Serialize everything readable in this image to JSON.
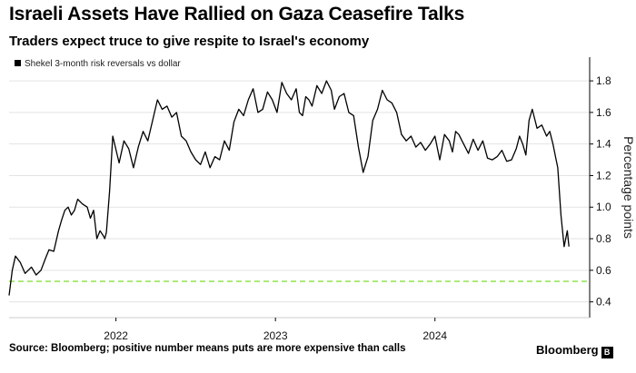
{
  "header": {
    "title": "Israeli Assets Have Rallied on Gaza Ceasefire Talks",
    "subtitle": "Traders expect truce to give respite to Israel's economy"
  },
  "footer": {
    "source": "Source: Bloomberg; positive number means puts are more expensive than calls",
    "logo_text": "Bloomberg",
    "logo_mark": "B"
  },
  "colors": {
    "line": "#000000",
    "reference": "#8fe34b",
    "grid": "#e3e3e3"
  },
  "chart_data": {
    "type": "line",
    "title": "Israeli Assets Have Rallied on Gaza Ceasefire Talks",
    "ylabel": "Percentage points",
    "xlabel": "",
    "ylim": [
      0.3,
      1.95
    ],
    "xlim": [
      2021.33,
      2024.97
    ],
    "yticks": [
      0.4,
      0.6,
      0.8,
      1.0,
      1.2,
      1.4,
      1.6,
      1.8
    ],
    "ytick_labels": [
      "0.4",
      "0.6",
      "0.8",
      "1.0",
      "1.2",
      "1.4",
      "1.6",
      "1.8"
    ],
    "xticks": [
      2022.0,
      2023.0,
      2024.0
    ],
    "xtick_labels": [
      "2022",
      "2023",
      "2024"
    ],
    "grid": true,
    "legend": {
      "position": "top-left",
      "entries": [
        "Shekel 3-month risk reversals vs dollar"
      ]
    },
    "reference_line": {
      "y": 0.53,
      "style": "dashed"
    },
    "series": [
      {
        "name": "Shekel 3-month risk reversals vs dollar",
        "x": [
          2021.33,
          2021.35,
          2021.37,
          2021.4,
          2021.43,
          2021.47,
          2021.5,
          2021.53,
          2021.56,
          2021.58,
          2021.61,
          2021.64,
          2021.66,
          2021.68,
          2021.7,
          2021.72,
          2021.74,
          2021.76,
          2021.79,
          2021.82,
          2021.84,
          2021.86,
          2021.88,
          2021.9,
          2021.92,
          2021.93,
          2021.94,
          2021.96,
          2021.98,
          2022.02,
          2022.05,
          2022.08,
          2022.11,
          2022.14,
          2022.17,
          2022.2,
          2022.23,
          2022.26,
          2022.29,
          2022.32,
          2022.35,
          2022.38,
          2022.41,
          2022.44,
          2022.47,
          2022.5,
          2022.53,
          2022.56,
          2022.59,
          2022.62,
          2022.65,
          2022.68,
          2022.71,
          2022.74,
          2022.77,
          2022.8,
          2022.83,
          2022.86,
          2022.89,
          2022.92,
          2022.95,
          2022.98,
          2023.01,
          2023.04,
          2023.07,
          2023.1,
          2023.13,
          2023.15,
          2023.17,
          2023.19,
          2023.21,
          2023.23,
          2023.26,
          2023.29,
          2023.32,
          2023.35,
          2023.37,
          2023.4,
          2023.43,
          2023.46,
          2023.49,
          2023.52,
          2023.55,
          2023.58,
          2023.61,
          2023.64,
          2023.67,
          2023.7,
          2023.73,
          2023.76,
          2023.79,
          2023.82,
          2023.85,
          2023.88,
          2023.91,
          2023.94,
          2023.97,
          2024.0,
          2024.03,
          2024.06,
          2024.09,
          2024.11,
          2024.13,
          2024.15,
          2024.18,
          2024.21,
          2024.24,
          2024.27,
          2024.3,
          2024.33,
          2024.36,
          2024.39,
          2024.42,
          2024.45,
          2024.48,
          2024.51,
          2024.53,
          2024.55,
          2024.57,
          2024.59,
          2024.61,
          2024.64,
          2024.67,
          2024.7,
          2024.72,
          2024.74,
          2024.76,
          2024.77,
          2024.79,
          2024.81,
          2024.83,
          2024.84
        ],
        "y": [
          0.44,
          0.6,
          0.69,
          0.65,
          0.58,
          0.62,
          0.57,
          0.6,
          0.68,
          0.73,
          0.72,
          0.85,
          0.92,
          0.98,
          1.0,
          0.95,
          0.98,
          1.05,
          1.02,
          1.0,
          0.93,
          0.98,
          0.8,
          0.85,
          0.82,
          0.8,
          0.84,
          1.1,
          1.45,
          1.28,
          1.42,
          1.37,
          1.25,
          1.38,
          1.48,
          1.42,
          1.55,
          1.68,
          1.62,
          1.64,
          1.57,
          1.6,
          1.45,
          1.42,
          1.35,
          1.3,
          1.27,
          1.35,
          1.25,
          1.32,
          1.3,
          1.42,
          1.36,
          1.54,
          1.62,
          1.58,
          1.68,
          1.75,
          1.6,
          1.62,
          1.73,
          1.68,
          1.6,
          1.79,
          1.72,
          1.68,
          1.75,
          1.6,
          1.58,
          1.7,
          1.68,
          1.64,
          1.77,
          1.72,
          1.8,
          1.74,
          1.62,
          1.7,
          1.72,
          1.6,
          1.58,
          1.38,
          1.22,
          1.32,
          1.55,
          1.62,
          1.74,
          1.68,
          1.66,
          1.6,
          1.46,
          1.42,
          1.45,
          1.38,
          1.41,
          1.36,
          1.4,
          1.45,
          1.3,
          1.46,
          1.42,
          1.35,
          1.48,
          1.46,
          1.4,
          1.34,
          1.43,
          1.36,
          1.42,
          1.31,
          1.3,
          1.32,
          1.36,
          1.29,
          1.3,
          1.37,
          1.45,
          1.4,
          1.33,
          1.55,
          1.62,
          1.5,
          1.52,
          1.45,
          1.48,
          1.4,
          1.3,
          1.25,
          0.95,
          0.75,
          0.85,
          0.75
        ]
      }
    ]
  }
}
